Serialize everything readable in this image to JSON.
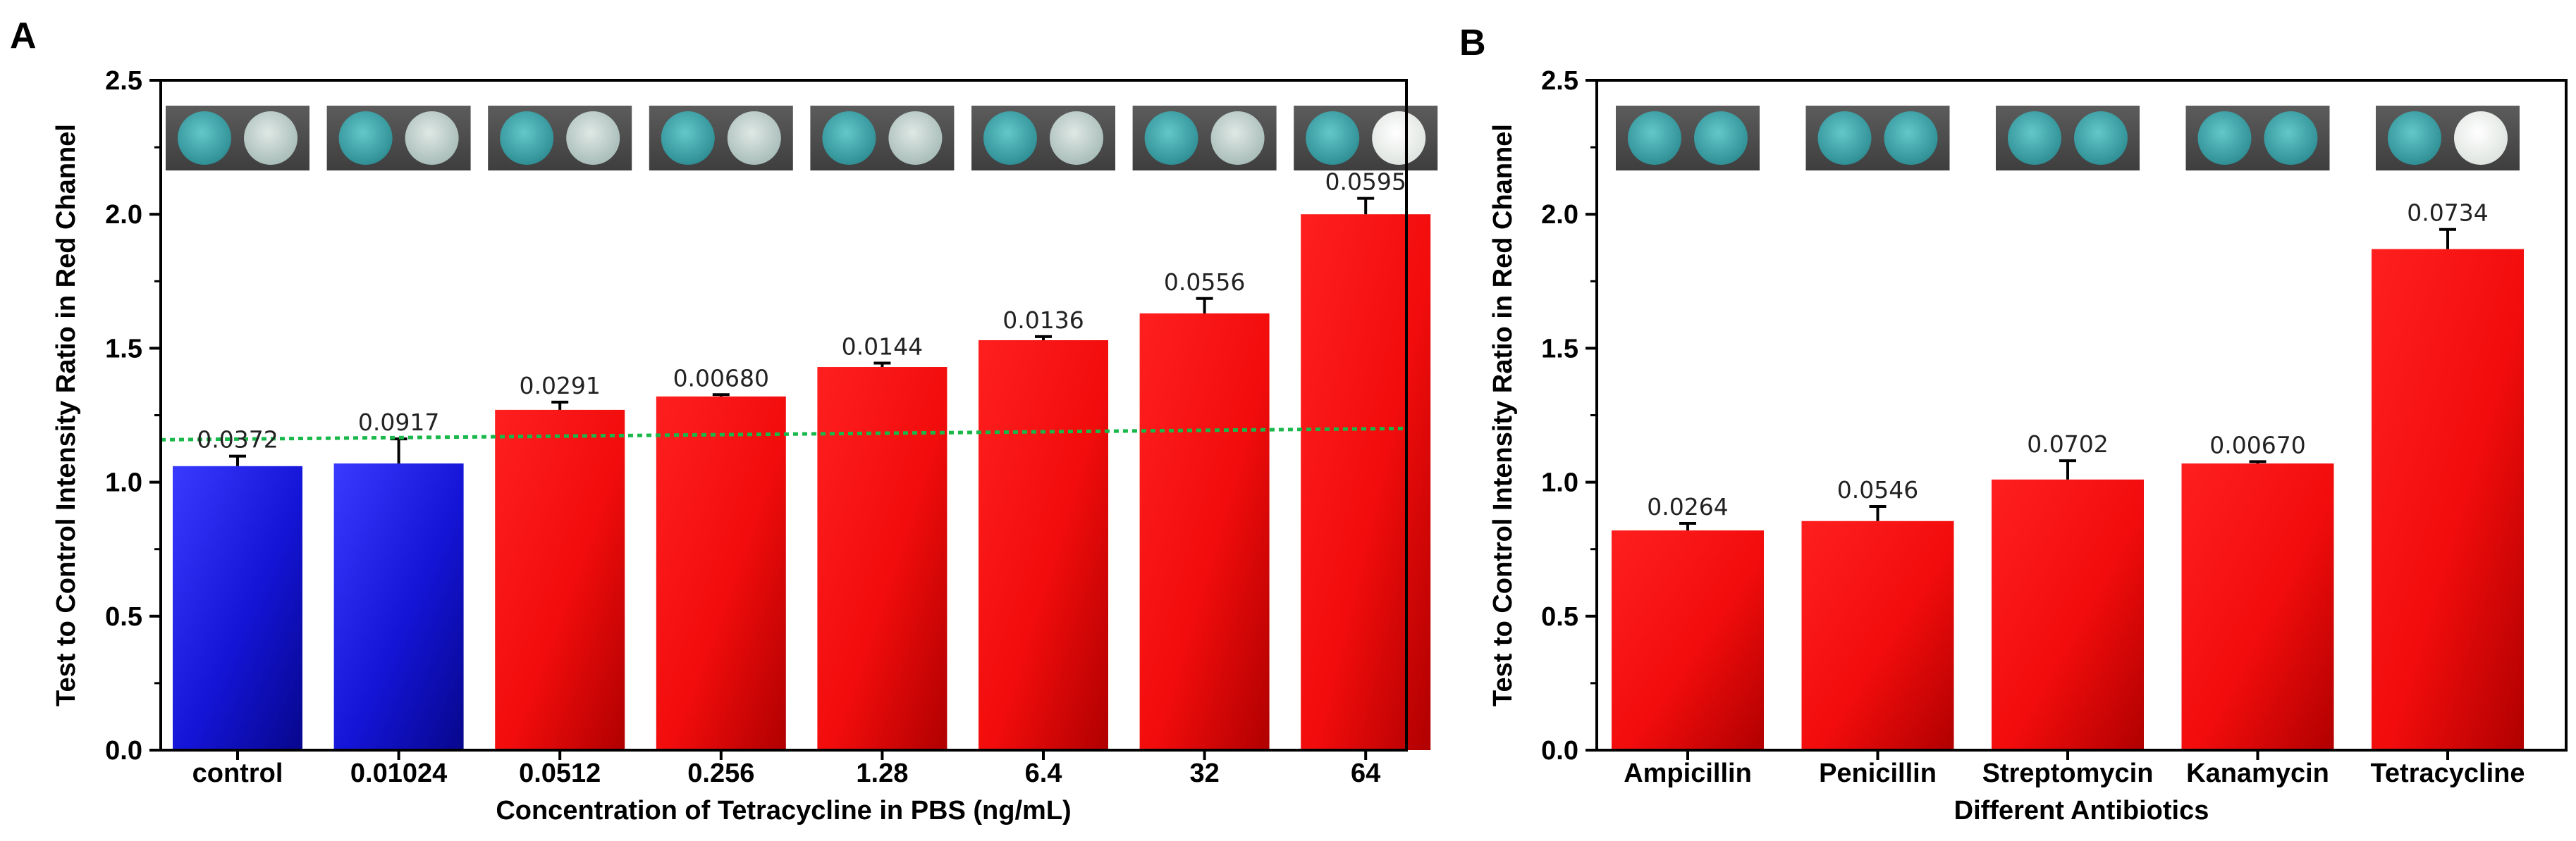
{
  "chart_data": [
    {
      "panel": "A",
      "type": "bar",
      "title": "",
      "categories": [
        "control",
        "0.01024",
        "0.0512",
        "0.256",
        "1.28",
        "6.4",
        "32",
        "64"
      ],
      "values": [
        1.06,
        1.07,
        1.27,
        1.32,
        1.43,
        1.53,
        1.63,
        2.0
      ],
      "errors": [
        0.0372,
        0.0917,
        0.0291,
        0.0068,
        0.0144,
        0.0136,
        0.0556,
        0.0595
      ],
      "error_labels": [
        "0.0372",
        "0.0917",
        "0.0291",
        "0.00680",
        "0.0144",
        "0.0136",
        "0.0556",
        "0.0595"
      ],
      "bar_colors": [
        "blue",
        "blue",
        "red",
        "red",
        "red",
        "red",
        "red",
        "red"
      ],
      "xlabel": "Concentration of Tetracycline in PBS (ng/mL)",
      "ylabel": "Test to Control Intensity Ratio in Red Channel",
      "ylim": [
        0,
        2.5
      ],
      "yticks": [
        "0.0",
        "0.5",
        "1.0",
        "1.5",
        "2.0",
        "2.5"
      ],
      "threshold": 1.19,
      "strip_photos": true
    },
    {
      "panel": "B",
      "type": "bar",
      "title": "",
      "categories": [
        "Ampicillin",
        "Penicillin",
        "Streptomycin",
        "Kanamycin",
        "Tetracycline"
      ],
      "values": [
        0.82,
        0.855,
        1.01,
        1.07,
        1.87
      ],
      "errors": [
        0.0264,
        0.0546,
        0.0702,
        0.0067,
        0.0734
      ],
      "error_labels": [
        "0.0264",
        "0.0546",
        "0.0702",
        "0.00670",
        "0.0734"
      ],
      "bar_colors": [
        "red",
        "red",
        "red",
        "red",
        "red"
      ],
      "xlabel": "Different Antibiotics",
      "ylabel": "Test to Control Intensity Ratio in Red Channel",
      "ylim": [
        0,
        2.5
      ],
      "yticks": [
        "0.0",
        "0.5",
        "1.0",
        "1.5",
        "2.0",
        "2.5"
      ],
      "strip_photos": true
    }
  ],
  "colors": {
    "blue_light": "#3a3aff",
    "blue_dark": "#0a0a9a",
    "red_light": "#ff1a1a",
    "red_dark": "#b80000",
    "threshold": "#19b84a",
    "spot_teal": "#3fa8ad",
    "spot_pale": "#c9d7d4",
    "spot_white": "#f0f2f0",
    "strip_bg": "#4e4e4e"
  }
}
